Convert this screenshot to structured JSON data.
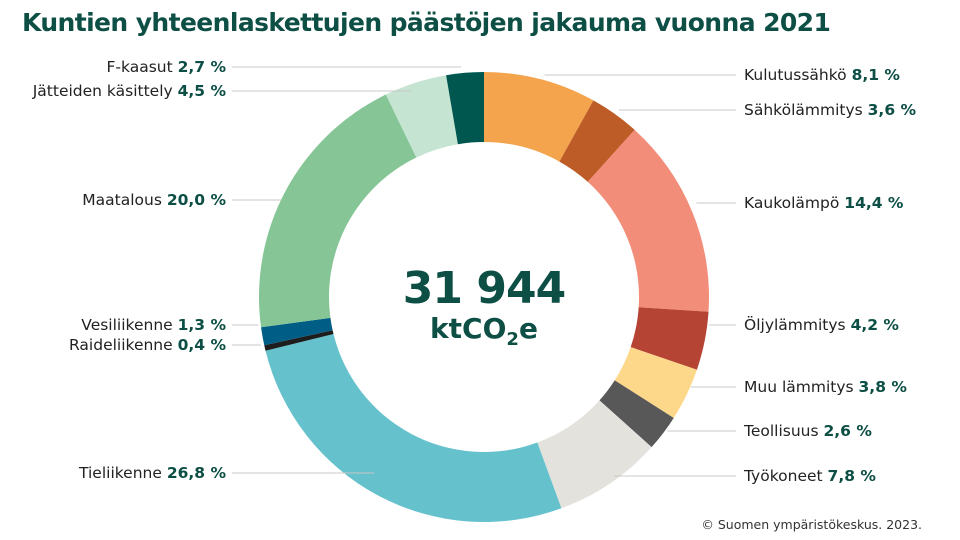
{
  "title": "Kuntien yhteenlaskettujen päästöjen jakauma vuonna 2021",
  "credit": "© Suomen ympäristökeskus. 2023.",
  "chart_data": {
    "type": "pie",
    "donut": true,
    "center": {
      "value": "31 944",
      "unit_prefix": "ktCO",
      "unit_sub": "2",
      "unit_suffix": "e"
    },
    "slices": [
      {
        "name": "Kulutussähkö",
        "value": 8.1,
        "label": "8,1 %",
        "color": "#f3a44c",
        "side": "right"
      },
      {
        "name": "Sähkölämmitys",
        "value": 3.6,
        "label": "3,6 %",
        "color": "#bd5c26",
        "side": "right"
      },
      {
        "name": "Kaukolämpö",
        "value": 14.4,
        "label": "14,4 %",
        "color": "#f28d79",
        "side": "right"
      },
      {
        "name": "Öljylämmitys",
        "value": 4.2,
        "label": "4,2 %",
        "color": "#b64435",
        "side": "right"
      },
      {
        "name": "Muu lämmitys",
        "value": 3.8,
        "label": "3,8 %",
        "color": "#fdd88b",
        "side": "right"
      },
      {
        "name": "Teollisuus",
        "value": 2.6,
        "label": "2,6 %",
        "color": "#585858",
        "side": "right"
      },
      {
        "name": "Työkoneet",
        "value": 7.8,
        "label": "7,8 %",
        "color": "#e3e2dd",
        "side": "right"
      },
      {
        "name": "Tieliikenne",
        "value": 26.8,
        "label": "26,8 %",
        "color": "#65c1cc",
        "side": "left"
      },
      {
        "name": "Raideliikenne",
        "value": 0.4,
        "label": "0,4 %",
        "color": "#1d1d1d",
        "side": "left"
      },
      {
        "name": "Vesiliikenne",
        "value": 1.3,
        "label": "1,3 %",
        "color": "#005e86",
        "side": "left"
      },
      {
        "name": "Maatalous",
        "value": 20.0,
        "label": "20,0 %",
        "color": "#85c596",
        "side": "left"
      },
      {
        "name": "Jätteiden käsittely",
        "value": 4.5,
        "label": "4,5 %",
        "color": "#c6e4d2",
        "side": "left"
      },
      {
        "name": "F-kaasut",
        "value": 2.7,
        "label": "2,7 %",
        "color": "#00574f",
        "side": "left"
      }
    ]
  }
}
